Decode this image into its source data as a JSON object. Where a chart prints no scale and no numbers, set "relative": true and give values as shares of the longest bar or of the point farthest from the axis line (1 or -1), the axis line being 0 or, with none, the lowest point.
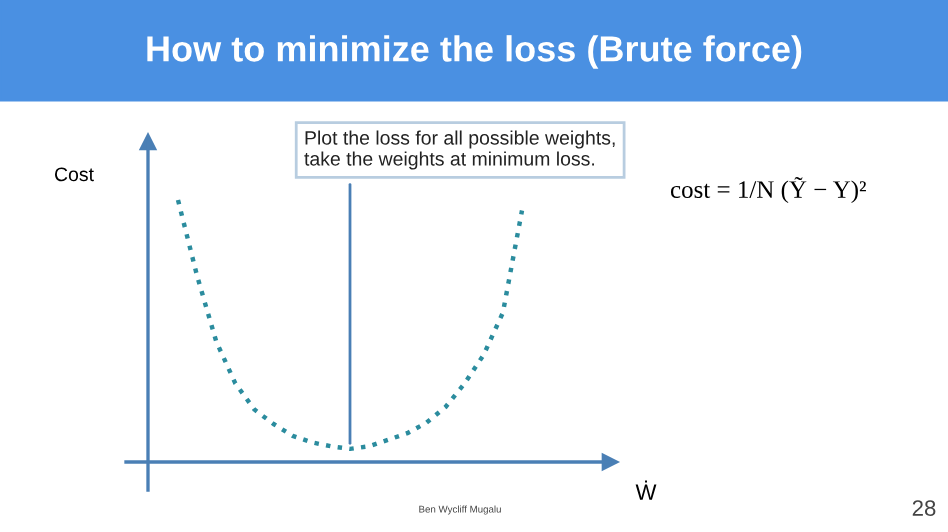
{
  "chart_data": {
    "type": "line",
    "title": "How to minimize the loss (Brute force)",
    "xlabel": "Ẇ",
    "ylabel": "Cost",
    "relative": true,
    "line_style": "dotted",
    "marker": "none",
    "grid": false,
    "legend": false,
    "categories": [
      null,
      null,
      null,
      null,
      null,
      null,
      null,
      null,
      null,
      null,
      null,
      null,
      null,
      null,
      null,
      null,
      null,
      null,
      null
    ],
    "series": [
      {
        "color": "#2b8c9e",
        "values": [
          1.0,
          0.71,
          0.46,
          0.3,
          0.2,
          0.145,
          0.1,
          0.075,
          0.06,
          0.05,
          0.06,
          0.085,
          0.11,
          0.15,
          0.21,
          0.3,
          0.41,
          0.57,
          0.96
        ]
      }
    ],
    "annotations": [
      "Plot the loss for all possible weights,\ntake the weights at minimum loss.",
      "cost = 1/N (Ỹ − Y)²",
      "Ben Wycliff Mugalu",
      "28"
    ]
  }
}
